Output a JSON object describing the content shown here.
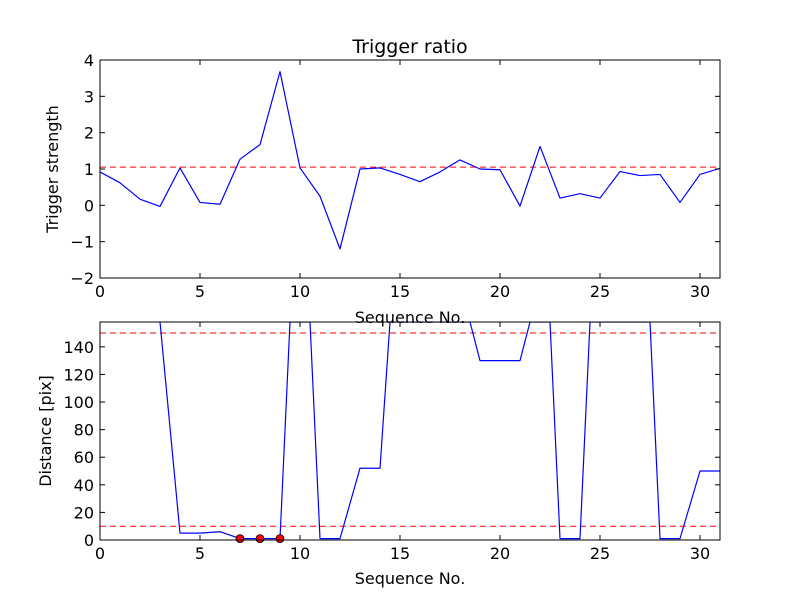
{
  "chart_data": [
    {
      "type": "line",
      "title": "Trigger ratio",
      "xlabel": "Sequence No.",
      "ylabel": "Trigger strength",
      "xlim": [
        0,
        31
      ],
      "ylim": [
        -2,
        4
      ],
      "xticks": [
        0,
        5,
        10,
        15,
        20,
        25,
        30
      ],
      "yticks": [
        -2,
        -1,
        0,
        1,
        2,
        3,
        4
      ],
      "ytick_labels": [
        "−2",
        "−1",
        "0",
        "1",
        "2",
        "3",
        "4"
      ],
      "grid": false,
      "series": [
        {
          "color": "#0000ff",
          "x": [
            0,
            1,
            2,
            3,
            4,
            5,
            6,
            7,
            8,
            9,
            10,
            11,
            12,
            13,
            14,
            15,
            16,
            17,
            18,
            19,
            20,
            21,
            22,
            23,
            24,
            25,
            26,
            27,
            28,
            29,
            30,
            31
          ],
          "y": [
            0.92,
            0.62,
            0.17,
            -0.03,
            1.03,
            0.08,
            0.03,
            1.27,
            1.67,
            3.68,
            1.03,
            0.25,
            -1.2,
            1.0,
            1.03,
            0.85,
            0.65,
            0.92,
            1.25,
            1.0,
            0.98,
            -0.02,
            1.62,
            0.2,
            0.32,
            0.2,
            0.93,
            0.82,
            0.85,
            0.08,
            0.85,
            1.02
          ]
        }
      ],
      "hlines": [
        {
          "y": 1.05,
          "color": "#ff0000",
          "style": "dashed"
        }
      ]
    },
    {
      "type": "line",
      "title": "",
      "xlabel": "Sequence No.",
      "ylabel": "Distance [pix]",
      "xlim": [
        0,
        31
      ],
      "ylim": [
        0,
        158
      ],
      "xticks": [
        0,
        5,
        10,
        15,
        20,
        25,
        30
      ],
      "yticks": [
        0,
        20,
        40,
        60,
        80,
        100,
        120,
        140
      ],
      "grid": false,
      "series": [
        {
          "color": "#0000ff",
          "x": [
            3,
            4,
            5,
            6,
            7,
            8,
            9,
            9.5,
            10.5,
            11,
            12,
            13,
            14,
            14.5,
            18.5,
            19,
            20,
            21,
            21.5,
            22,
            22.5,
            23,
            24,
            24.5,
            25.5,
            27,
            27.5,
            28,
            29,
            30,
            31
          ],
          "y": [
            158,
            5,
            5,
            6,
            1,
            1,
            1,
            158,
            158,
            1,
            1,
            52,
            52,
            158,
            158,
            130,
            130,
            130,
            158,
            158,
            158,
            1,
            1,
            158,
            158,
            158,
            158,
            1,
            1,
            50,
            50
          ]
        }
      ],
      "markers": [
        {
          "x": 7,
          "y": 1,
          "color": "#ff0000"
        },
        {
          "x": 8,
          "y": 1,
          "color": "#ff0000"
        },
        {
          "x": 9,
          "y": 1,
          "color": "#ff0000"
        }
      ],
      "hlines": [
        {
          "y": 150,
          "color": "#ff0000",
          "style": "dashed"
        },
        {
          "y": 10,
          "color": "#ff0000",
          "style": "dashed"
        }
      ]
    }
  ]
}
